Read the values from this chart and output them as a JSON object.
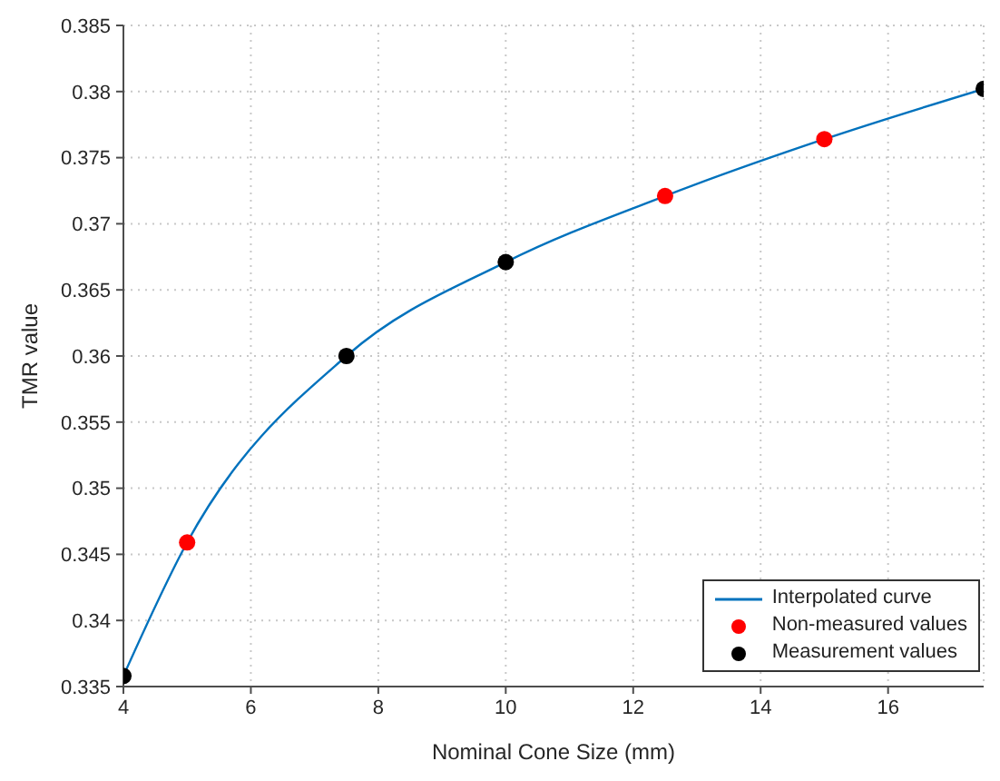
{
  "chart_data": {
    "type": "scatter",
    "xlabel": "Nominal Cone Size (mm)",
    "ylabel": "TMR value",
    "xlim": [
      4,
      17.5
    ],
    "xticks": [
      4,
      6,
      8,
      10,
      12,
      14,
      16
    ],
    "ylim": [
      0.335,
      0.385
    ],
    "yticks": [
      0.335,
      0.34,
      0.345,
      0.35,
      0.355,
      0.36,
      0.365,
      0.37,
      0.375,
      0.38,
      0.385
    ],
    "grid": true,
    "legend": "bottom right",
    "series": [
      {
        "name": "Interpolated curve",
        "type": "line",
        "marker": "none",
        "color": "#0072bd",
        "x": [
          4,
          5,
          7.5,
          10,
          12.5,
          15,
          17.5
        ],
        "values": [
          0.3358,
          0.3459,
          0.36,
          0.3671,
          0.3721,
          0.3764,
          0.3802
        ]
      },
      {
        "name": "Non-measured values",
        "marker": "circle",
        "color": "#ff0000",
        "x": [
          5,
          12.5,
          15
        ],
        "values": [
          0.3459,
          0.3721,
          0.3764
        ]
      },
      {
        "name": "Measurement values",
        "marker": "circle",
        "color": "#000000",
        "x": [
          4,
          7.5,
          10,
          17.5
        ],
        "values": [
          0.3358,
          0.36,
          0.3671,
          0.3802
        ]
      }
    ]
  }
}
